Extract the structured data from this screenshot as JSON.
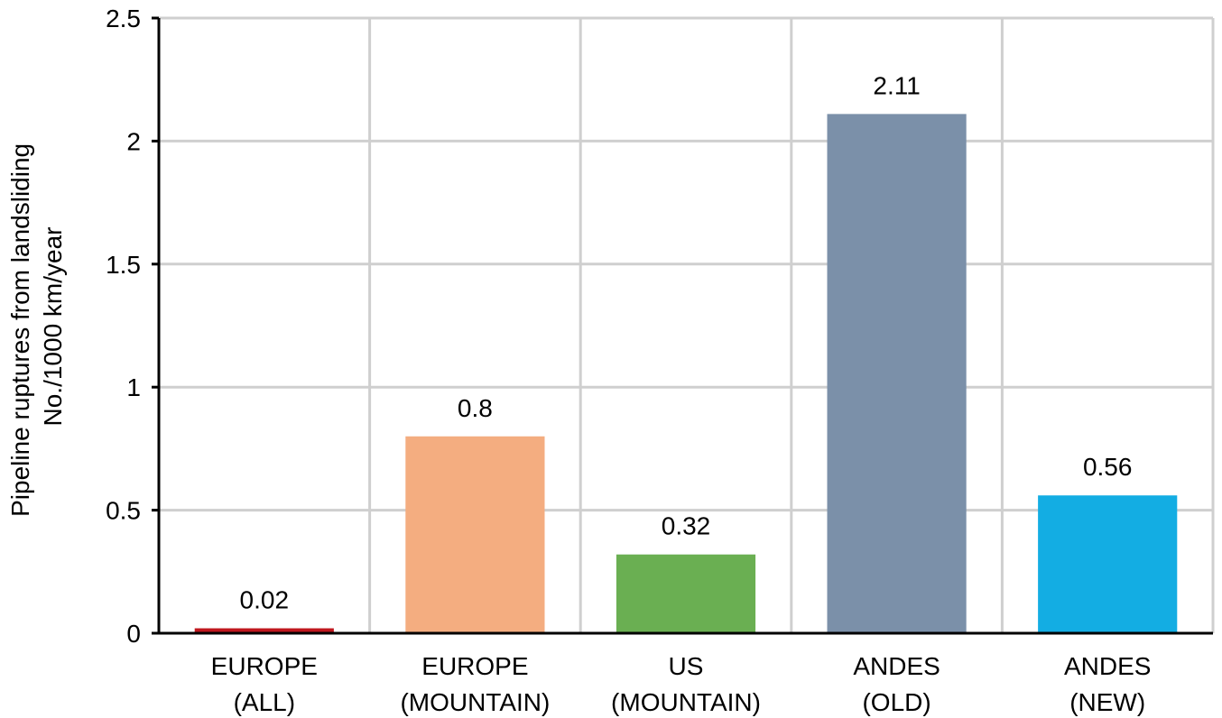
{
  "chart_data": {
    "type": "bar",
    "title": "",
    "xlabel": "",
    "ylabel_lines": [
      "Pipeline ruptures from landsliding",
      "No./1000 km/year"
    ],
    "ylim": [
      0,
      2.5
    ],
    "yticks": [
      {
        "value": 0,
        "label": "0"
      },
      {
        "value": 0.5,
        "label": "0.5"
      },
      {
        "value": 1,
        "label": "1"
      },
      {
        "value": 1.5,
        "label": "1.5"
      },
      {
        "value": 2,
        "label": "2"
      },
      {
        "value": 2.5,
        "label": "2.5"
      }
    ],
    "categories": [
      {
        "line1": "EUROPE",
        "line2": "(ALL)"
      },
      {
        "line1": "EUROPE",
        "line2": "(MOUNTAIN)"
      },
      {
        "line1": "US",
        "line2": "(MOUNTAIN)"
      },
      {
        "line1": "ANDES",
        "line2": "(OLD)"
      },
      {
        "line1": "ANDES",
        "line2": "(NEW)"
      }
    ],
    "values": [
      0.02,
      0.8,
      0.32,
      2.11,
      0.56
    ],
    "value_labels": [
      "0.02",
      "0.8",
      "0.32",
      "2.11",
      "0.56"
    ],
    "colors": [
      "#c0181f",
      "#f4ad80",
      "#6aaf52",
      "#7b90a9",
      "#13ade3"
    ],
    "grid": true
  }
}
